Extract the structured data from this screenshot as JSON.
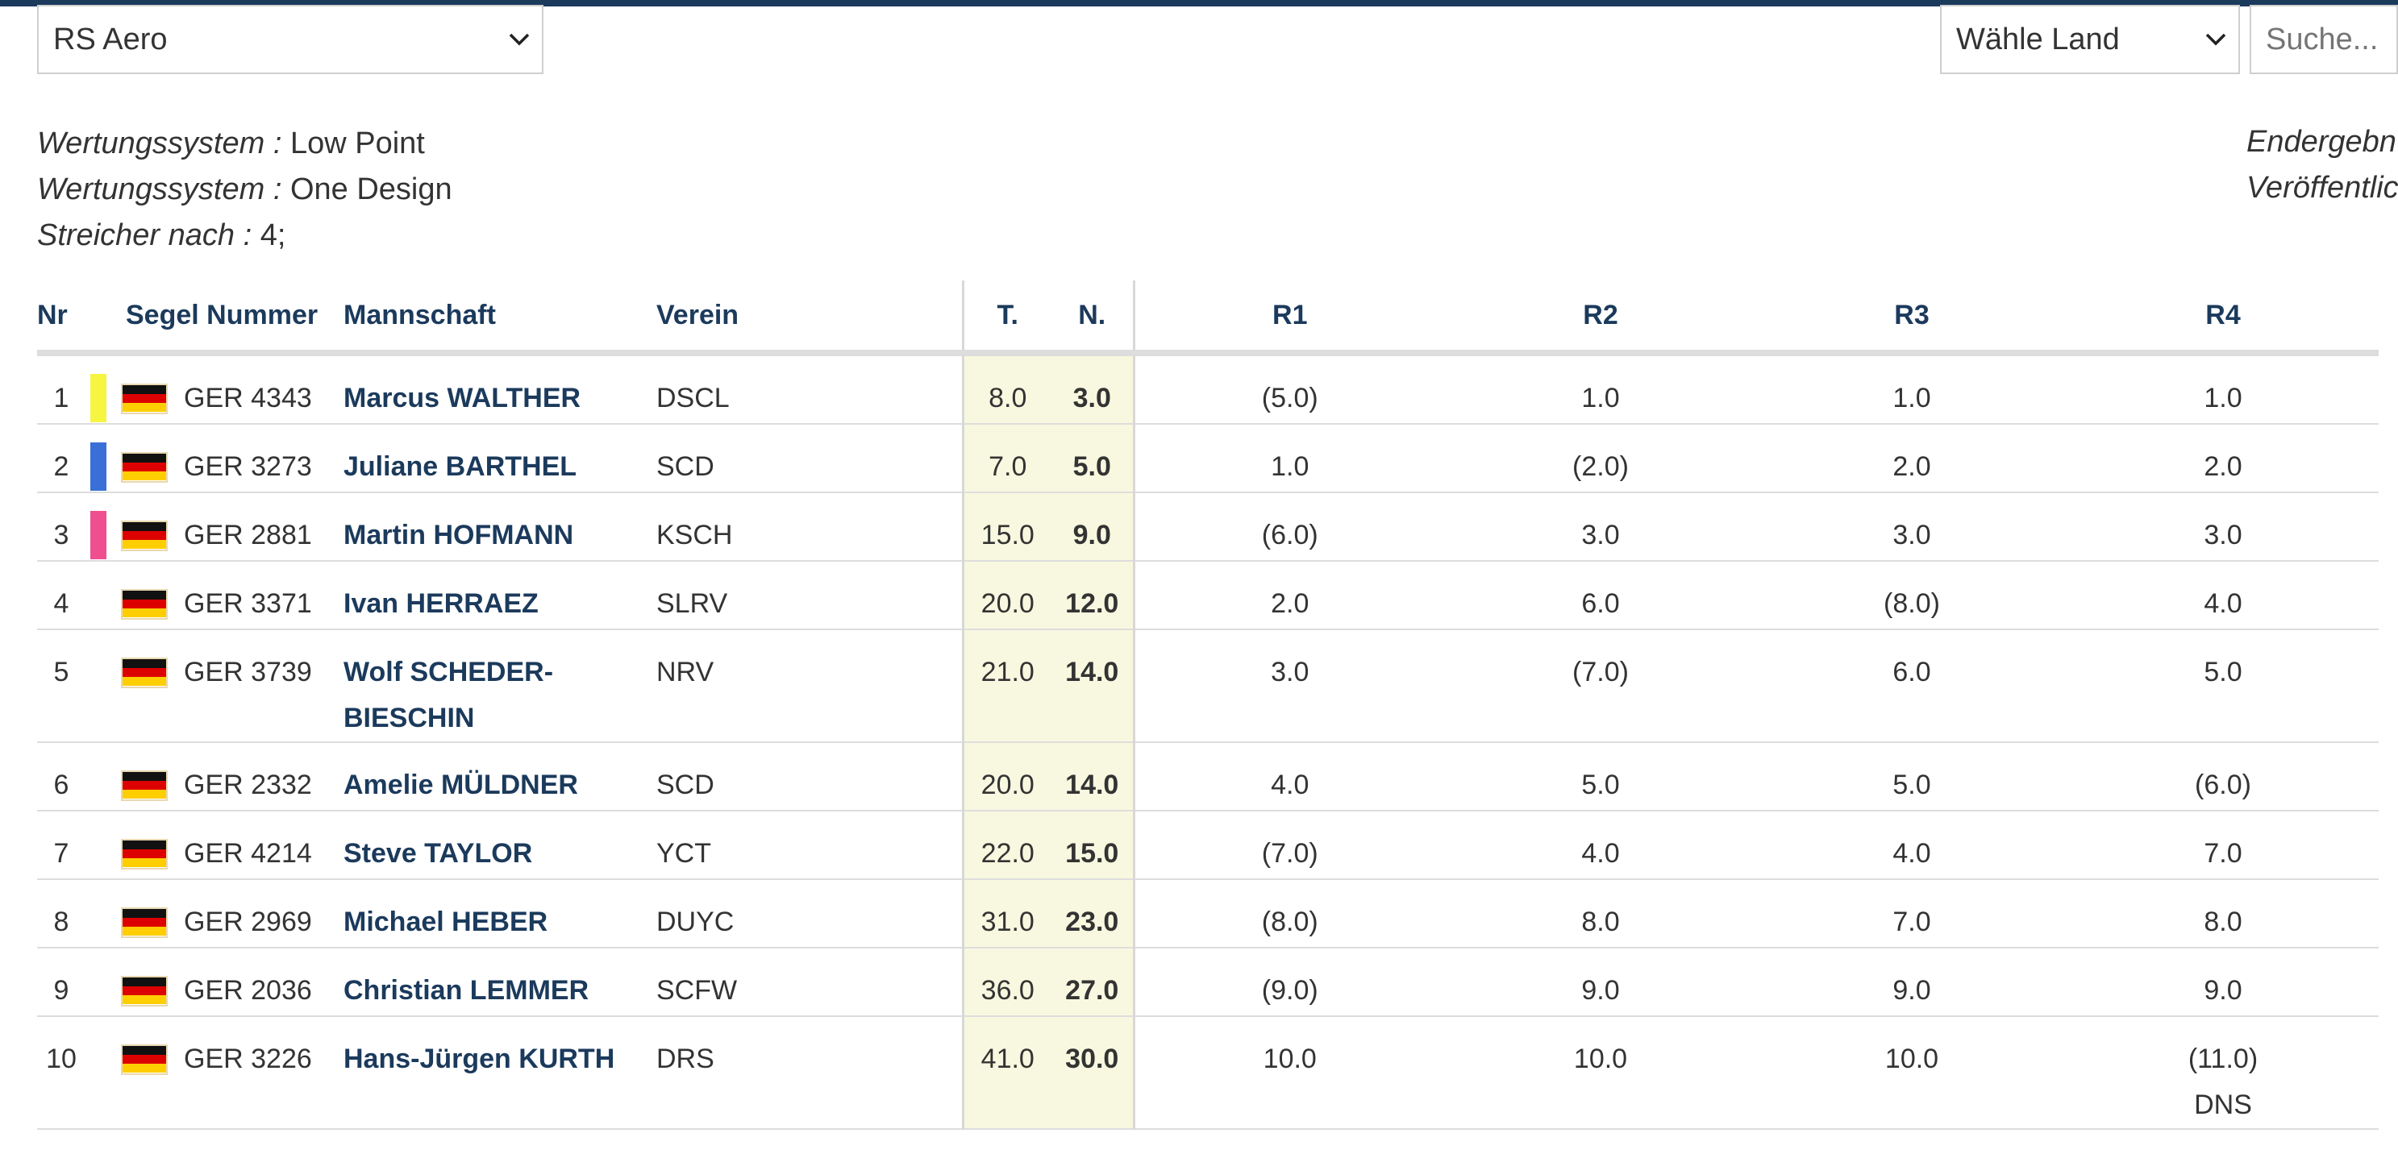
{
  "filters": {
    "class_select": "RS Aero",
    "country_select": "Wähle Land",
    "search_placeholder": "Suche..."
  },
  "info": {
    "lines": [
      {
        "key": "Wertungssystem :",
        "value": "Low Point"
      },
      {
        "key": "Wertungssystem :",
        "value": "One Design"
      },
      {
        "key": "Streicher nach :",
        "value": "4;"
      }
    ],
    "right_lines": [
      "Endergebn",
      "Veröffentlic"
    ]
  },
  "colors": {
    "header_bar": "#1b3a5c",
    "header_text": "#1b3a5c",
    "highlight_bg": "#f8f8e0",
    "rank1": "#f5f542",
    "rank2": "#3a6fd8",
    "rank3": "#ef4f8f"
  },
  "table": {
    "headers": {
      "nr": "Nr",
      "sail": "Segel Nummer",
      "team": "Mannschaft",
      "club": "Verein",
      "total": "T.",
      "net": "N.",
      "r1": "R1",
      "r2": "R2",
      "r3": "R3",
      "r4": "R4"
    },
    "rows": [
      {
        "nr": "1",
        "flag": "germany-flag-icon",
        "bar": "#f5f542",
        "sail": "GER 4343",
        "team_line1": "Marcus WALTHER",
        "team_line2": "",
        "club": "DSCL",
        "total": "8.0",
        "net": "3.0",
        "r1": "(5.0)",
        "r2": "1.0",
        "r3": "1.0",
        "r4": "1.0",
        "r4_note": ""
      },
      {
        "nr": "2",
        "flag": "germany-flag-icon",
        "bar": "#3a6fd8",
        "sail": "GER 3273",
        "team_line1": "Juliane BARTHEL",
        "team_line2": "",
        "club": "SCD",
        "total": "7.0",
        "net": "5.0",
        "r1": "1.0",
        "r2": "(2.0)",
        "r3": "2.0",
        "r4": "2.0",
        "r4_note": ""
      },
      {
        "nr": "3",
        "flag": "germany-flag-icon",
        "bar": "#ef4f8f",
        "sail": "GER 2881",
        "team_line1": "Martin HOFMANN",
        "team_line2": "",
        "club": "KSCH",
        "total": "15.0",
        "net": "9.0",
        "r1": "(6.0)",
        "r2": "3.0",
        "r3": "3.0",
        "r4": "3.0",
        "r4_note": ""
      },
      {
        "nr": "4",
        "flag": "germany-flag-icon",
        "bar": "",
        "sail": "GER 3371",
        "team_line1": "Ivan HERRAEZ",
        "team_line2": "",
        "club": "SLRV",
        "total": "20.0",
        "net": "12.0",
        "r1": "2.0",
        "r2": "6.0",
        "r3": "(8.0)",
        "r4": "4.0",
        "r4_note": ""
      },
      {
        "nr": "5",
        "flag": "germany-flag-icon",
        "bar": "",
        "sail": "GER 3739",
        "team_line1": "Wolf SCHEDER-",
        "team_line2": "BIESCHIN",
        "club": "NRV",
        "total": "21.0",
        "net": "14.0",
        "r1": "3.0",
        "r2": "(7.0)",
        "r3": "6.0",
        "r4": "5.0",
        "r4_note": ""
      },
      {
        "nr": "6",
        "flag": "germany-flag-icon",
        "bar": "",
        "sail": "GER 2332",
        "team_line1": "Amelie MÜLDNER",
        "team_line2": "",
        "club": "SCD",
        "total": "20.0",
        "net": "14.0",
        "r1": "4.0",
        "r2": "5.0",
        "r3": "5.0",
        "r4": "(6.0)",
        "r4_note": ""
      },
      {
        "nr": "7",
        "flag": "germany-flag-icon",
        "bar": "",
        "sail": "GER 4214",
        "team_line1": "Steve TAYLOR",
        "team_line2": "",
        "club": "YCT",
        "total": "22.0",
        "net": "15.0",
        "r1": "(7.0)",
        "r2": "4.0",
        "r3": "4.0",
        "r4": "7.0",
        "r4_note": ""
      },
      {
        "nr": "8",
        "flag": "germany-flag-icon",
        "bar": "",
        "sail": "GER 2969",
        "team_line1": "Michael HEBER",
        "team_line2": "",
        "club": "DUYC",
        "total": "31.0",
        "net": "23.0",
        "r1": "(8.0)",
        "r2": "8.0",
        "r3": "7.0",
        "r4": "8.0",
        "r4_note": ""
      },
      {
        "nr": "9",
        "flag": "germany-flag-icon",
        "bar": "",
        "sail": "GER 2036",
        "team_line1": "Christian LEMMER",
        "team_line2": "",
        "club": "SCFW",
        "total": "36.0",
        "net": "27.0",
        "r1": "(9.0)",
        "r2": "9.0",
        "r3": "9.0",
        "r4": "9.0",
        "r4_note": ""
      },
      {
        "nr": "10",
        "flag": "germany-flag-icon",
        "bar": "",
        "sail": "GER 3226",
        "team_line1": "Hans-Jürgen KURTH",
        "team_line2": "",
        "club": "DRS",
        "total": "41.0",
        "net": "30.0",
        "r1": "10.0",
        "r2": "10.0",
        "r3": "10.0",
        "r4": "(11.0)",
        "r4_note": "DNS"
      }
    ]
  }
}
